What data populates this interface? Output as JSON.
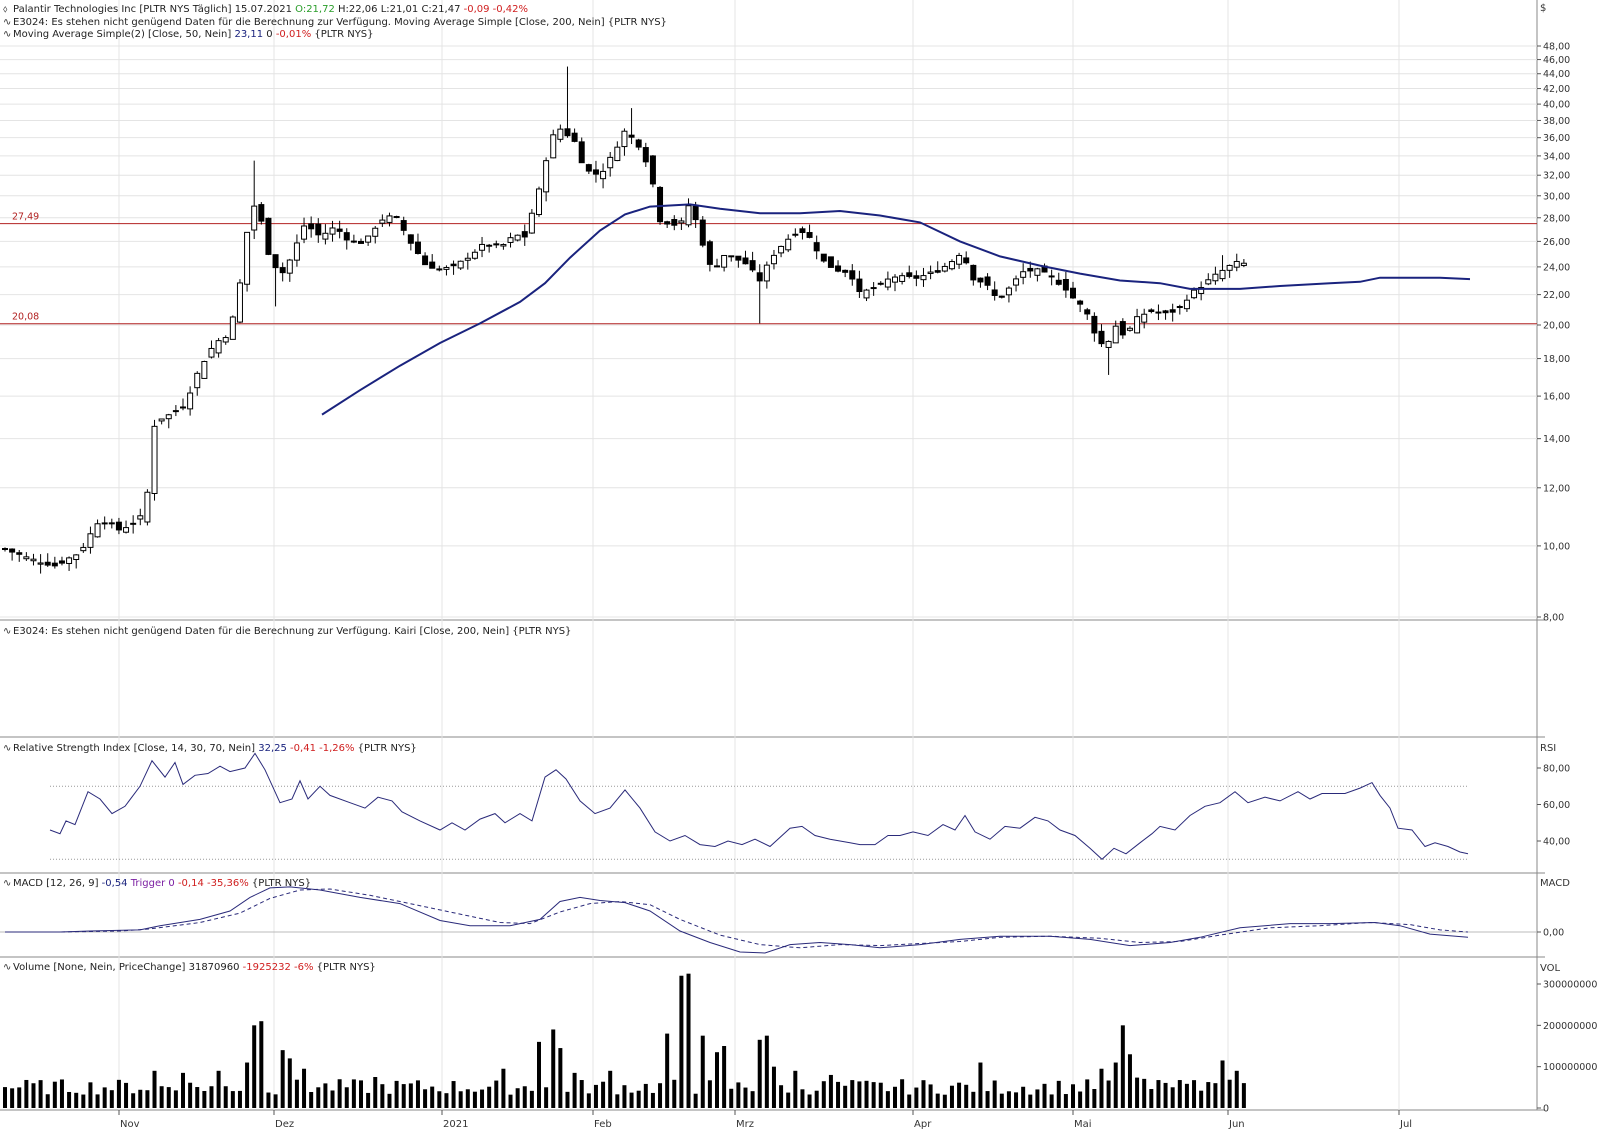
{
  "currency": "$",
  "headers": {
    "price": {
      "line1": [
        {
          "t": "Palantir Technologies Inc [PLTR NYS  Täglich] 15.07.2021  ",
          "c": "#222222"
        },
        {
          "t": "O:21,72",
          "c": "#2a9d2a"
        },
        {
          "t": " H:22,06 L:21,01 C:21,47 ",
          "c": "#222222"
        },
        {
          "t": "-0,09 -0,42%",
          "c": "#d02020"
        }
      ],
      "line2": [
        {
          "t": "E3024: Es stehen nicht genügend Daten für die Berechnung zur Verfügung. Moving Average Simple [Close, 200, Nein] {PLTR NYS}",
          "c": "#222222"
        }
      ],
      "line3": [
        {
          "t": "Moving Average Simple(2) [Close, 50, Nein] ",
          "c": "#222222"
        },
        {
          "t": "23,11",
          "c": "#1a237e"
        },
        {
          "t": " 0 ",
          "c": "#222222"
        },
        {
          "t": "-0,01%",
          "c": "#d02020"
        },
        {
          "t": " {PLTR NYS}",
          "c": "#222222"
        }
      ]
    },
    "kairi": [
      {
        "t": "E3024: Es stehen nicht genügend Daten für die Berechnung zur Verfügung. Kairi [Close, 200, Nein] {PLTR NYS}",
        "c": "#222222"
      }
    ],
    "rsi": [
      {
        "t": "Relative Strength Index [Close, 14, 30, 70, Nein] ",
        "c": "#222222"
      },
      {
        "t": "32,25",
        "c": "#1a237e"
      },
      {
        "t": " -0,41 -1,26%",
        "c": "#d02020"
      },
      {
        "t": " {PLTR NYS}",
        "c": "#222222"
      }
    ],
    "macd": [
      {
        "t": "MACD [12, 26, 9] ",
        "c": "#222222"
      },
      {
        "t": "-0,54",
        "c": "#1a237e"
      },
      {
        "t": " Trigger 0",
        "c": "#7b1fa2"
      },
      {
        "t": " -0,14 -35,36%",
        "c": "#d02020"
      },
      {
        "t": " {PLTR NYS}",
        "c": "#222222"
      }
    ],
    "volume": [
      {
        "t": "Volume [None, Nein, PriceChange] ",
        "c": "#222222"
      },
      {
        "t": "31870960",
        "c": "#222222"
      },
      {
        "t": " -1925232 -6%",
        "c": "#d02020"
      },
      {
        "t": " {PLTR NYS}",
        "c": "#222222"
      }
    ]
  },
  "axis_titles": {
    "rsi": "RSI",
    "macd": "MACD",
    "volume": "VOL"
  },
  "chart_data": {
    "type": "candlestick",
    "y_scale": "log",
    "price_ticks": [
      "8,00",
      "10,00",
      "12,00",
      "14,00",
      "16,00",
      "18,00",
      "20,00",
      "22,00",
      "24,00",
      "26,00",
      "28,00",
      "30,00",
      "32,00",
      "34,00",
      "36,00",
      "38,00",
      "40,00",
      "42,00",
      "44,00",
      "46,00",
      "48,00"
    ],
    "rsi_ticks": [
      "40,00",
      "60,00",
      "80,00"
    ],
    "macd_ticks": [
      "0,00"
    ],
    "volume_ticks": [
      "0",
      "100000000",
      "200000000",
      "300000000"
    ],
    "months": [
      "Nov",
      "Dez",
      "2021",
      "Feb",
      "Mrz",
      "Apr",
      "Mai",
      "Jun",
      "Jul"
    ],
    "levels": [
      {
        "label": "27,49",
        "value": 27.49,
        "color": "#b22222"
      },
      {
        "label": "20,08",
        "value": 20.08,
        "color": "#b22222"
      }
    ],
    "ma50": {
      "color": "#1a237e"
    },
    "rsi_levels": [
      30,
      70
    ],
    "colors": {
      "up": "#ffffff",
      "down": "#000000",
      "wick": "#000000",
      "rsi": "#2a2a7a",
      "macd": "#2a2a7a",
      "trigger": "#2a2a7a",
      "volume": "#000000",
      "grid": "#e4e4e4"
    }
  }
}
